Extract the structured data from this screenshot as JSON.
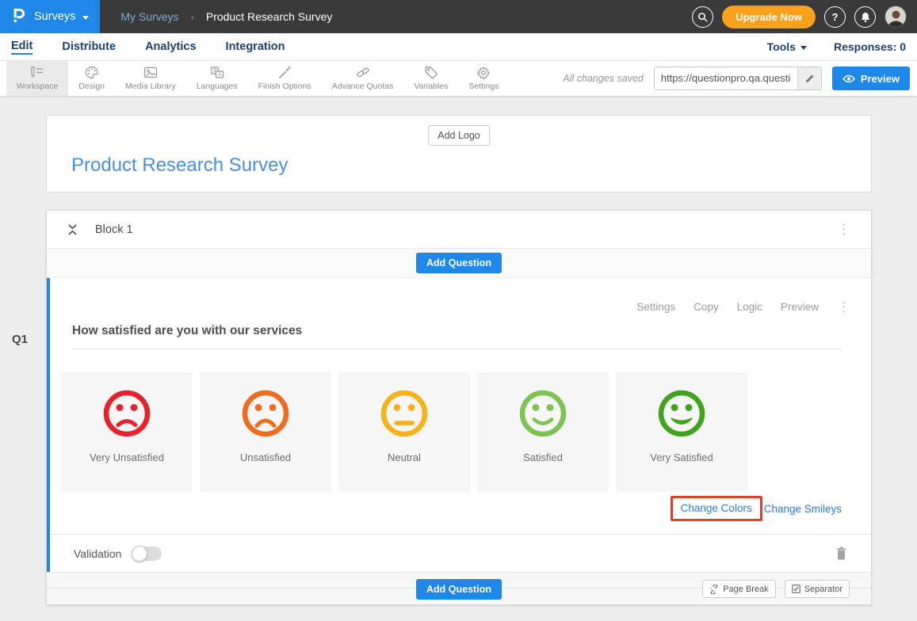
{
  "topbar": {
    "brand": {
      "logo_icon": "questionpro-logo",
      "menu_label": "Surveys",
      "caret_icon": "caret-down-icon"
    },
    "breadcrumb": {
      "parent": "My Surveys",
      "separator": "›",
      "current": "Product Research Survey"
    },
    "actions": {
      "search_icon": "search-icon",
      "upgrade_label": "Upgrade Now",
      "help_icon": "help-icon",
      "notifications_icon": "bell-icon",
      "avatar_icon": "user-avatar"
    }
  },
  "nav": {
    "tabs": [
      {
        "label": "Edit",
        "active": true
      },
      {
        "label": "Distribute",
        "active": false
      },
      {
        "label": "Analytics",
        "active": false
      },
      {
        "label": "Integration",
        "active": false
      }
    ],
    "tools_label": "Tools",
    "responses_label": "Responses: 0"
  },
  "toolbar": {
    "items": [
      {
        "label": "Workspace",
        "icon": "workspace-icon",
        "active": true
      },
      {
        "label": "Design",
        "icon": "design-icon",
        "active": false
      },
      {
        "label": "Media Library",
        "icon": "media-library-icon",
        "active": false
      },
      {
        "label": "Languages",
        "icon": "languages-icon",
        "active": false
      },
      {
        "label": "Finish Options",
        "icon": "finish-options-icon",
        "active": false
      },
      {
        "label": "Advance Quotas",
        "icon": "advance-quotas-icon",
        "active": false
      },
      {
        "label": "Variables",
        "icon": "variables-icon",
        "active": false
      },
      {
        "label": "Settings",
        "icon": "settings-icon",
        "active": false
      }
    ],
    "saved_status": "All changes saved",
    "url_value": "https://questionpro.qa.questionp",
    "edit_url_icon": "pencil-icon",
    "preview_label": "Preview",
    "preview_icon": "eye-icon"
  },
  "survey": {
    "add_logo_label": "Add Logo",
    "title": "Product Research Survey"
  },
  "block": {
    "title": "Block 1",
    "collapse_icon": "collapse-icon",
    "menu_icon": "kebab-menu-icon",
    "add_question_label": "Add Question",
    "footer": {
      "add_question_label": "Add Question",
      "page_break_label": "Page Break",
      "page_break_icon": "page-break-icon",
      "separator_label": "Separator",
      "separator_icon": "separator-checkbox-icon"
    }
  },
  "question": {
    "number": "Q1",
    "text": "How satisfied are you with our services",
    "actions": [
      "Settings",
      "Copy",
      "Logic",
      "Preview"
    ],
    "menu_icon": "kebab-menu-icon",
    "options": [
      {
        "label": "Very Unsatisfied",
        "color": "#e8212d",
        "mood": "very-sad"
      },
      {
        "label": "Unsatisfied",
        "color": "#ee6c1f",
        "mood": "sad"
      },
      {
        "label": "Neutral",
        "color": "#f6b21b",
        "mood": "neutral"
      },
      {
        "label": "Satisfied",
        "color": "#7dc452",
        "mood": "happy"
      },
      {
        "label": "Very Satisfied",
        "color": "#3fa31e",
        "mood": "very-happy"
      }
    ],
    "change_colors_label": "Change Colors",
    "change_smileys_label": "Change Smileys",
    "highlight_color": "#e53b2c",
    "validation_label": "Validation",
    "validation_on": false,
    "delete_icon": "trash-icon"
  },
  "colors": {
    "brand_blue": "#1f87e8",
    "accent_blue": "#1e87e8",
    "upgrade_orange": "#f9a11b",
    "nav_navy": "#1d4272",
    "title_blue": "#4a90e2",
    "link_blue": "#2b7ce0",
    "topbar_dark": "#3a3a3a"
  }
}
